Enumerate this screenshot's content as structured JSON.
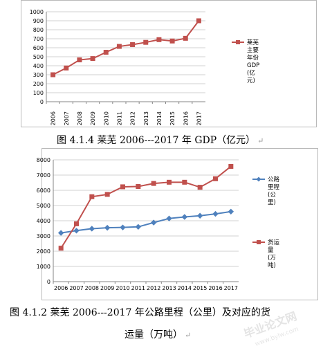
{
  "chart_data": [
    {
      "type": "line",
      "categories": [
        "2006",
        "2007",
        "2008",
        "2009",
        "2010",
        "2011",
        "2012",
        "2013",
        "2014",
        "2015",
        "2016",
        "2017"
      ],
      "series": [
        {
          "name": "莱芜主要年份GDP(亿元)",
          "legend_lines": [
            "莱芜",
            "主要",
            "年份",
            "GDP",
            "(亿",
            "元)"
          ],
          "values": [
            300,
            375,
            465,
            480,
            550,
            615,
            635,
            660,
            690,
            675,
            705,
            900
          ],
          "color": "#c0504d",
          "marker": "square"
        }
      ],
      "ylim": [
        0,
        1000
      ],
      "yticks": [
        0,
        100,
        200,
        300,
        400,
        500,
        600,
        700,
        800,
        900,
        1000
      ],
      "grid": true,
      "legend_position": "right",
      "xlabel": "",
      "ylabel": ""
    },
    {
      "type": "line",
      "categories": [
        "2006",
        "2007",
        "2008",
        "2009",
        "2010",
        "2011",
        "2012",
        "2013",
        "2014",
        "2015",
        "2016",
        "2017"
      ],
      "series": [
        {
          "name": "公路里程(公里)",
          "legend_lines": [
            "公路",
            "里程",
            "(公",
            "里)"
          ],
          "values": [
            3200,
            3350,
            3480,
            3540,
            3560,
            3600,
            3880,
            4150,
            4250,
            4330,
            4450,
            4600
          ],
          "color": "#4f81bd",
          "marker": "diamond"
        },
        {
          "name": "货运量(万吨)",
          "legend_lines": [
            "货运",
            "量",
            "(万",
            "吨)"
          ],
          "values": [
            2200,
            3800,
            5580,
            5730,
            6230,
            6250,
            6450,
            6530,
            6530,
            6200,
            6760,
            7570
          ],
          "color": "#c0504d",
          "marker": "square"
        }
      ],
      "ylim": [
        0,
        8000
      ],
      "yticks": [
        0,
        1000,
        2000,
        3000,
        4000,
        5000,
        6000,
        7000,
        8000
      ],
      "grid": true,
      "legend_position": "right",
      "xlabel": "",
      "ylabel": ""
    }
  ],
  "captions": {
    "figure1": "图 4.1.4 莱芜 2006---2017 年 GDP（亿元）",
    "figure2_line1": "图 4.1.2 莱芜 2006---2017 年公路里程（公里）及对应的货",
    "figure2_line2": "运量（万吨）",
    "return_mark": "↵"
  },
  "watermark": {
    "line1": "毕业论文网",
    "line2": "www.bylw.com"
  }
}
